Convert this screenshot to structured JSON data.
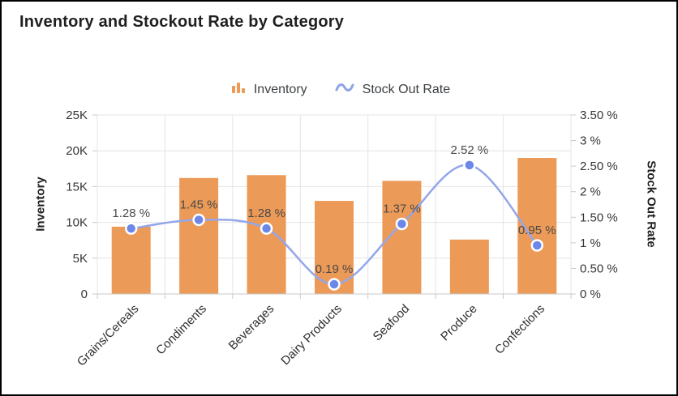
{
  "title": "Inventory and Stockout Rate by Category",
  "legend": [
    {
      "label": "Inventory",
      "icon": "bar-chart-icon",
      "color": "#EC9A57"
    },
    {
      "label": "Stock Out Rate",
      "icon": "wave-icon",
      "color": "#94A6EA"
    }
  ],
  "colors": {
    "bar": "#EC9A57",
    "line": "#94A6EA",
    "point_fill": "#6C87E8",
    "point_ring": "#FFFFFF",
    "grid": "#E4E4E4",
    "axis_line": "#C9C9C9",
    "tick_text": "#363636",
    "data_label": "#4A4A4A"
  },
  "chart_data": {
    "type": "bar",
    "subtype": "combo-bar-line-dual-axis",
    "title": "Inventory and Stockout Rate by Category",
    "categories": [
      "Grains/Cereals",
      "Condiments",
      "Beverages",
      "Dairy Products",
      "Seafood",
      "Produce",
      "Confections"
    ],
    "series": [
      {
        "name": "Inventory",
        "type": "bar",
        "axis": "left",
        "color": "#EC9A57",
        "values": [
          9400,
          16200,
          16600,
          13000,
          15800,
          7600,
          19000
        ]
      },
      {
        "name": "Stock Out Rate",
        "type": "line",
        "axis": "right",
        "color": "#94A6EA",
        "values": [
          1.28,
          1.45,
          1.28,
          0.19,
          1.37,
          2.52,
          0.95
        ],
        "point_labels": [
          "1.28 %",
          "1.45 %",
          "1.28 %",
          "0.19 %",
          "1.37 %",
          "2.52 %",
          "0.95 %"
        ]
      }
    ],
    "left_axis": {
      "title": "Inventory",
      "min": 0,
      "max": 25000,
      "tick_labels": [
        "25K",
        "20K",
        "15K",
        "10K",
        "5K",
        "0"
      ],
      "tick_values": [
        25000,
        20000,
        15000,
        10000,
        5000,
        0
      ]
    },
    "right_axis": {
      "title": "Stock Out Rate",
      "min": 0,
      "max": 3.5,
      "tick_labels": [
        "3.50 %",
        "3 %",
        "2.50 %",
        "2 %",
        "1.50 %",
        "1 %",
        "0.50 %",
        "0 %"
      ],
      "tick_values": [
        3.5,
        3,
        2.5,
        2,
        1.5,
        1,
        0.5,
        0
      ]
    },
    "grid": "horizontal-and-vertical",
    "legend_position": "top-center"
  }
}
